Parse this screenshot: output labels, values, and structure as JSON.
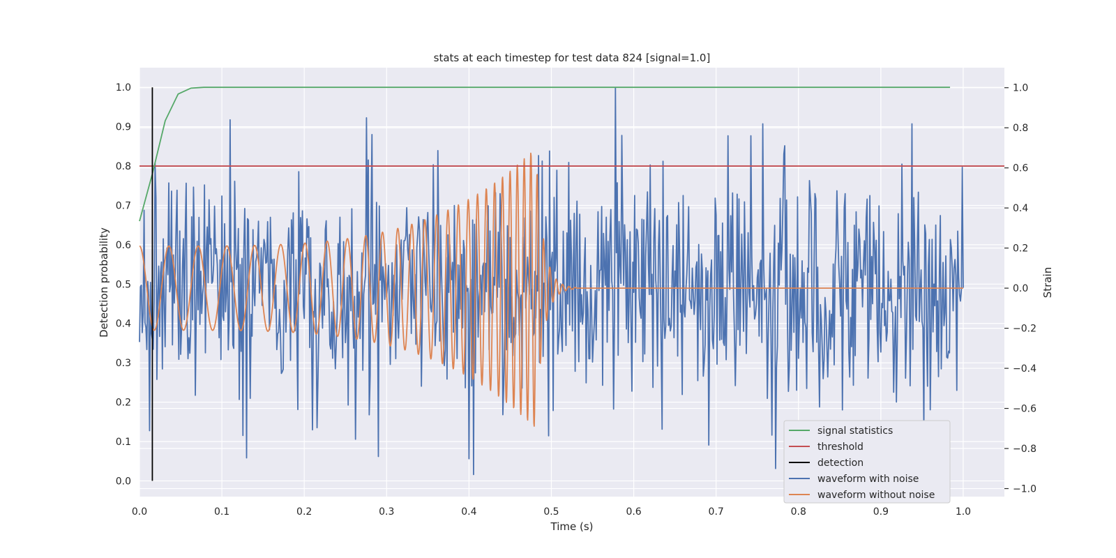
{
  "chart_data": {
    "type": "line",
    "title": "stats at each timestep for test data 824 [signal=1.0]",
    "xlabel": "Time (s)",
    "ylabel": "Detection probability",
    "y2label": "Strain",
    "xlim": [
      0.0,
      1.05
    ],
    "ylim": [
      -0.04,
      1.05
    ],
    "y2lim": [
      -1.04,
      1.1
    ],
    "xticks": [
      0.0,
      0.1,
      0.2,
      0.3,
      0.4,
      0.5,
      0.6,
      0.7,
      0.8,
      0.9,
      1.0
    ],
    "xtick_labels": [
      "0.0",
      "0.1",
      "0.2",
      "0.3",
      "0.4",
      "0.5",
      "0.6",
      "0.7",
      "0.8",
      "0.9",
      "1.0"
    ],
    "yticks": [
      0.0,
      0.1,
      0.2,
      0.3,
      0.4,
      0.5,
      0.6,
      0.7,
      0.8,
      0.9,
      1.0
    ],
    "ytick_labels": [
      "0.0",
      "0.1",
      "0.2",
      "0.3",
      "0.4",
      "0.5",
      "0.6",
      "0.7",
      "0.8",
      "0.9",
      "1.0"
    ],
    "y2ticks": [
      -1.0,
      -0.8,
      -0.6,
      -0.4,
      -0.2,
      0.0,
      0.2,
      0.4,
      0.6,
      0.8,
      1.0
    ],
    "y2tick_labels": [
      "−1.0",
      "−0.8",
      "−0.6",
      "−0.4",
      "−0.2",
      "0.0",
      "0.2",
      "0.4",
      "0.6",
      "0.8",
      "1.0"
    ],
    "grid": true,
    "legend_position": "lower-right",
    "series": [
      {
        "name": "signal statistics",
        "axis": "left",
        "color": "#55a868",
        "x": [
          0.0,
          0.0156,
          0.0312,
          0.0469,
          0.0625,
          0.0781,
          0.1,
          0.2,
          0.3,
          0.4,
          0.5,
          0.6,
          0.7,
          0.8,
          0.9,
          0.984
        ],
        "y": [
          0.66,
          0.78,
          0.915,
          0.983,
          0.998,
          1.0,
          1.0,
          1.0,
          1.0,
          1.0,
          1.0,
          1.0,
          1.0,
          1.0,
          1.0,
          1.0
        ]
      },
      {
        "name": "threshold",
        "axis": "left",
        "color": "#c44e52",
        "x": [
          0.0,
          1.05
        ],
        "y": [
          0.8,
          0.8
        ]
      },
      {
        "name": "detection",
        "axis": "left",
        "color": "#000000",
        "x": [
          0.0156,
          0.0156
        ],
        "y": [
          0.0,
          1.0
        ]
      },
      {
        "name": "waveform with noise",
        "axis": "right",
        "color": "#4c72b0",
        "x_range": [
          0.0,
          1.0
        ],
        "noise_seed": 824,
        "noise_points": 900,
        "peaks": [
          [
            0.11,
            0.84
          ],
          [
            0.276,
            0.85
          ],
          [
            0.578,
            1.0
          ],
          [
            0.715,
            0.76
          ],
          [
            0.742,
            0.76
          ],
          [
            0.405,
            -0.93
          ],
          [
            0.29,
            -0.84
          ]
        ]
      },
      {
        "name": "waveform without noise",
        "axis": "right",
        "color": "#dd8452",
        "x_range": [
          0.0,
          1.0
        ],
        "chirp": {
          "start_amp": 0.21,
          "peak_amp": 0.7,
          "merger_time": 0.481,
          "ringdown_end": 0.53,
          "start_freq": 28,
          "end_freq": 130
        }
      }
    ]
  }
}
